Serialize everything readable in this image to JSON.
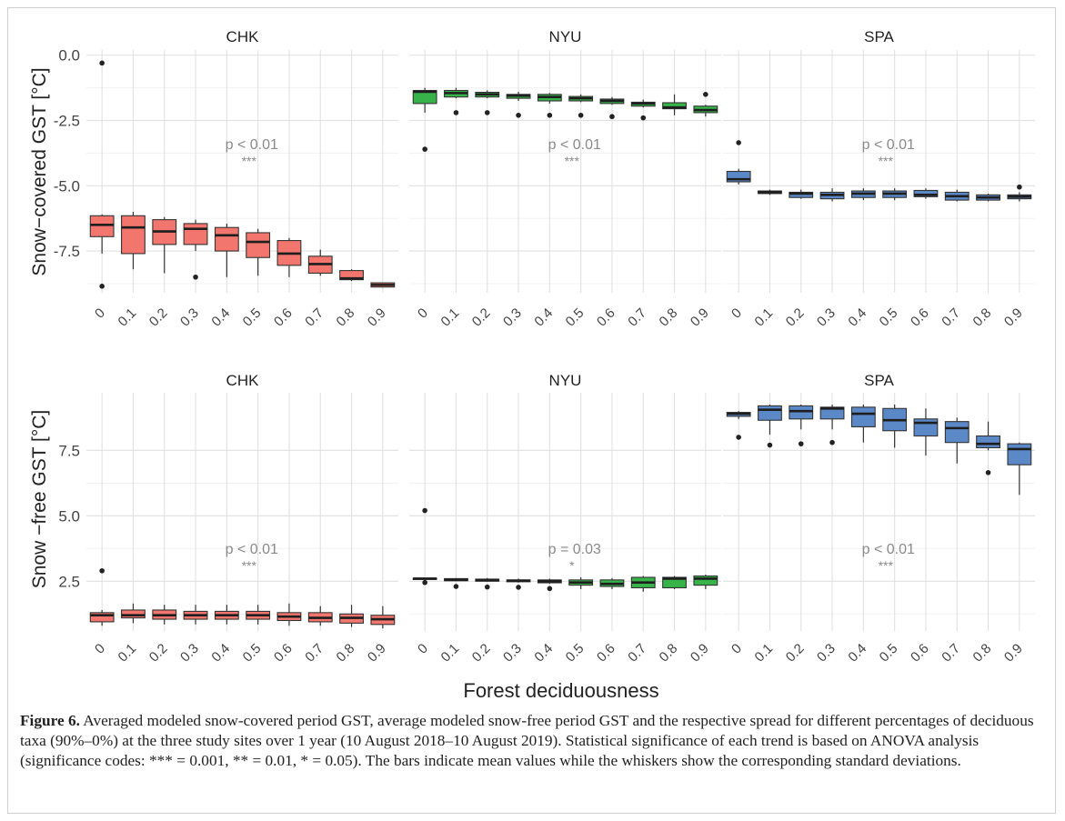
{
  "figure": {
    "label": "Figure 6.",
    "caption": "Averaged modeled snow-covered period GST, average modeled snow-free period GST and the respective spread for different percentages of deciduous taxa (90%–0%) at the three study sites over 1 year (10 August 2018–10 August 2019). Statistical significance of each trend is based on ANOVA analysis (significance codes: *** = 0.001, ** = 0.01, * = 0.05). The bars indicate mean values while the whiskers show the corresponding standard deviations.",
    "xlabel": "Forest deciduousness"
  },
  "colors": {
    "CHK": "#f2766d",
    "NYU": "#37b34a",
    "SPA": "#5b88c7"
  },
  "chart_data": [
    {
      "type": "boxplot",
      "row_ylabel": "Snow−covered GST [°C]",
      "ylim": [
        -9.1,
        0.2
      ],
      "yticks": [
        -7.5,
        -5.0,
        -2.5,
        0.0
      ],
      "ytick_labels": [
        "-7.5",
        "-5.0",
        "-2.5",
        "0.0"
      ],
      "categories": [
        "0",
        "0.1",
        "0.2",
        "0.3",
        "0.4",
        "0.5",
        "0.6",
        "0.7",
        "0.8",
        "0.9"
      ],
      "panels": [
        {
          "site": "CHK",
          "annotation": "p < 0.01",
          "stars": "***",
          "boxes": [
            {
              "lw": -7.6,
              "q1": -6.95,
              "med": -6.5,
              "q3": -6.15,
              "uw": -6.1,
              "out": [
                -0.3,
                -8.85
              ]
            },
            {
              "lw": -8.2,
              "q1": -7.6,
              "med": -6.6,
              "q3": -6.15,
              "uw": -6.0,
              "out": []
            },
            {
              "lw": -8.35,
              "q1": -7.25,
              "med": -6.75,
              "q3": -6.3,
              "uw": -6.2,
              "out": []
            },
            {
              "lw": -7.5,
              "q1": -7.25,
              "med": -6.65,
              "q3": -6.45,
              "uw": -6.3,
              "out": [
                -8.5
              ]
            },
            {
              "lw": -8.5,
              "q1": -7.5,
              "med": -6.9,
              "q3": -6.6,
              "uw": -6.45,
              "out": []
            },
            {
              "lw": -8.45,
              "q1": -7.75,
              "med": -7.15,
              "q3": -6.8,
              "uw": -6.65,
              "out": []
            },
            {
              "lw": -8.5,
              "q1": -8.05,
              "med": -7.6,
              "q3": -7.1,
              "uw": -7.0,
              "out": []
            },
            {
              "lw": -8.45,
              "q1": -8.35,
              "med": -8.0,
              "q3": -7.7,
              "uw": -7.45,
              "out": []
            },
            {
              "lw": -8.65,
              "q1": -8.6,
              "med": -8.55,
              "q3": -8.25,
              "uw": -8.2,
              "out": []
            },
            {
              "lw": -8.9,
              "q1": -8.88,
              "med": -8.8,
              "q3": -8.72,
              "uw": -8.7,
              "out": []
            }
          ]
        },
        {
          "site": "NYU",
          "annotation": "p < 0.01",
          "stars": "***",
          "boxes": [
            {
              "lw": -2.2,
              "q1": -1.85,
              "med": -1.4,
              "q3": -1.35,
              "uw": -1.25,
              "out": [
                -3.6
              ]
            },
            {
              "lw": -1.65,
              "q1": -1.6,
              "med": -1.45,
              "q3": -1.35,
              "uw": -1.25,
              "out": [
                -2.2
              ]
            },
            {
              "lw": -1.65,
              "q1": -1.6,
              "med": -1.5,
              "q3": -1.42,
              "uw": -1.35,
              "out": [
                -2.2
              ]
            },
            {
              "lw": -1.75,
              "q1": -1.65,
              "med": -1.55,
              "q3": -1.5,
              "uw": -1.4,
              "out": [
                -2.3
              ]
            },
            {
              "lw": -1.85,
              "q1": -1.75,
              "med": -1.6,
              "q3": -1.5,
              "uw": -1.45,
              "out": [
                -2.3
              ]
            },
            {
              "lw": -1.8,
              "q1": -1.75,
              "med": -1.65,
              "q3": -1.58,
              "uw": -1.5,
              "out": [
                -2.3
              ]
            },
            {
              "lw": -1.9,
              "q1": -1.85,
              "med": -1.75,
              "q3": -1.68,
              "uw": -1.6,
              "out": [
                -2.35
              ]
            },
            {
              "lw": -2.0,
              "q1": -1.95,
              "med": -1.85,
              "q3": -1.8,
              "uw": -1.7,
              "out": [
                -2.4
              ]
            },
            {
              "lw": -2.3,
              "q1": -2.05,
              "med": -2.0,
              "q3": -1.82,
              "uw": -1.5,
              "out": []
            },
            {
              "lw": -2.35,
              "q1": -2.2,
              "med": -2.1,
              "q3": -1.95,
              "uw": -1.9,
              "out": [
                -1.5
              ]
            }
          ]
        },
        {
          "site": "SPA",
          "annotation": "p < 0.01",
          "stars": "***",
          "boxes": [
            {
              "lw": -4.95,
              "q1": -4.85,
              "med": -4.75,
              "q3": -4.45,
              "uw": -4.35,
              "out": [
                -3.35
              ]
            },
            {
              "lw": -5.35,
              "q1": -5.3,
              "med": -5.25,
              "q3": -5.2,
              "uw": -5.15,
              "out": []
            },
            {
              "lw": -5.5,
              "q1": -5.45,
              "med": -5.3,
              "q3": -5.25,
              "uw": -5.15,
              "out": []
            },
            {
              "lw": -5.6,
              "q1": -5.5,
              "med": -5.35,
              "q3": -5.25,
              "uw": -5.1,
              "out": []
            },
            {
              "lw": -5.55,
              "q1": -5.45,
              "med": -5.3,
              "q3": -5.2,
              "uw": -5.1,
              "out": []
            },
            {
              "lw": -5.55,
              "q1": -5.45,
              "med": -5.3,
              "q3": -5.2,
              "uw": -5.1,
              "out": []
            },
            {
              "lw": -5.5,
              "q1": -5.42,
              "med": -5.35,
              "q3": -5.18,
              "uw": -5.1,
              "out": []
            },
            {
              "lw": -5.6,
              "q1": -5.55,
              "med": -5.4,
              "q3": -5.25,
              "uw": -5.15,
              "out": []
            },
            {
              "lw": -5.6,
              "q1": -5.55,
              "med": -5.45,
              "q3": -5.35,
              "uw": -5.3,
              "out": []
            },
            {
              "lw": -5.6,
              "q1": -5.5,
              "med": -5.42,
              "q3": -5.35,
              "uw": -5.25,
              "out": [
                -5.05
              ]
            }
          ]
        }
      ]
    },
    {
      "type": "boxplot",
      "row_ylabel": "Snow −free GST [°C]",
      "ylim": [
        0.6,
        9.7
      ],
      "yticks": [
        2.5,
        5.0,
        7.5
      ],
      "ytick_labels": [
        "2.5",
        "5.0",
        "7.5"
      ],
      "categories": [
        "0",
        "0.1",
        "0.2",
        "0.3",
        "0.4",
        "0.5",
        "0.6",
        "0.7",
        "0.8",
        "0.9"
      ],
      "panels": [
        {
          "site": "CHK",
          "annotation": "p < 0.01",
          "stars": "***",
          "boxes": [
            {
              "lw": 0.8,
              "q1": 0.95,
              "med": 1.2,
              "q3": 1.3,
              "uw": 1.4,
              "out": [
                2.9
              ]
            },
            {
              "lw": 0.9,
              "q1": 1.1,
              "med": 1.2,
              "q3": 1.4,
              "uw": 1.65,
              "out": []
            },
            {
              "lw": 0.85,
              "q1": 1.05,
              "med": 1.2,
              "q3": 1.4,
              "uw": 1.6,
              "out": []
            },
            {
              "lw": 0.85,
              "q1": 1.05,
              "med": 1.2,
              "q3": 1.35,
              "uw": 1.6,
              "out": []
            },
            {
              "lw": 0.85,
              "q1": 1.05,
              "med": 1.2,
              "q3": 1.35,
              "uw": 1.6,
              "out": []
            },
            {
              "lw": 0.85,
              "q1": 1.05,
              "med": 1.2,
              "q3": 1.35,
              "uw": 1.6,
              "out": []
            },
            {
              "lw": 0.8,
              "q1": 1.0,
              "med": 1.15,
              "q3": 1.3,
              "uw": 1.65,
              "out": []
            },
            {
              "lw": 0.8,
              "q1": 0.95,
              "med": 1.1,
              "q3": 1.3,
              "uw": 1.55,
              "out": []
            },
            {
              "lw": 0.75,
              "q1": 0.9,
              "med": 1.1,
              "q3": 1.25,
              "uw": 1.6,
              "out": []
            },
            {
              "lw": 0.7,
              "q1": 0.85,
              "med": 1.05,
              "q3": 1.2,
              "uw": 1.55,
              "out": []
            }
          ]
        },
        {
          "site": "NYU",
          "annotation": "p = 0.03",
          "stars": "*",
          "boxes": [
            {
              "lw": 2.55,
              "q1": 2.58,
              "med": 2.6,
              "q3": 2.62,
              "uw": 2.64,
              "out": [
                5.2,
                2.45
              ]
            },
            {
              "lw": 2.5,
              "q1": 2.52,
              "med": 2.55,
              "q3": 2.6,
              "uw": 2.62,
              "out": [
                2.3
              ]
            },
            {
              "lw": 2.48,
              "q1": 2.5,
              "med": 2.55,
              "q3": 2.58,
              "uw": 2.62,
              "out": [
                2.28
              ]
            },
            {
              "lw": 2.45,
              "q1": 2.48,
              "med": 2.52,
              "q3": 2.55,
              "uw": 2.6,
              "out": [
                2.27
              ]
            },
            {
              "lw": 2.4,
              "q1": 2.44,
              "med": 2.5,
              "q3": 2.55,
              "uw": 2.6,
              "out": [
                2.22
              ]
            },
            {
              "lw": 2.2,
              "q1": 2.35,
              "med": 2.45,
              "q3": 2.55,
              "uw": 2.65,
              "out": []
            },
            {
              "lw": 2.2,
              "q1": 2.3,
              "med": 2.4,
              "q3": 2.55,
              "uw": 2.62,
              "out": []
            },
            {
              "lw": 2.1,
              "q1": 2.25,
              "med": 2.45,
              "q3": 2.65,
              "uw": 2.7,
              "out": []
            },
            {
              "lw": 2.2,
              "q1": 2.25,
              "med": 2.6,
              "q3": 2.65,
              "uw": 2.7,
              "out": []
            },
            {
              "lw": 2.2,
              "q1": 2.35,
              "med": 2.6,
              "q3": 2.7,
              "uw": 2.75,
              "out": []
            }
          ]
        },
        {
          "site": "SPA",
          "annotation": "p < 0.01",
          "stars": "***",
          "boxes": [
            {
              "lw": 8.7,
              "q1": 8.8,
              "med": 8.9,
              "q3": 8.95,
              "uw": 9.0,
              "out": [
                8.0
              ]
            },
            {
              "lw": 8.1,
              "q1": 8.65,
              "med": 9.05,
              "q3": 9.2,
              "uw": 9.25,
              "out": [
                7.7
              ]
            },
            {
              "lw": 8.3,
              "q1": 8.7,
              "med": 9.0,
              "q3": 9.2,
              "uw": 9.25,
              "out": [
                7.75
              ]
            },
            {
              "lw": 8.3,
              "q1": 8.7,
              "med": 9.1,
              "q3": 9.15,
              "uw": 9.25,
              "out": [
                7.8
              ]
            },
            {
              "lw": 7.8,
              "q1": 8.4,
              "med": 8.9,
              "q3": 9.15,
              "uw": 9.25,
              "out": []
            },
            {
              "lw": 7.6,
              "q1": 8.25,
              "med": 8.65,
              "q3": 9.1,
              "uw": 9.25,
              "out": []
            },
            {
              "lw": 7.3,
              "q1": 8.05,
              "med": 8.55,
              "q3": 8.7,
              "uw": 9.1,
              "out": []
            },
            {
              "lw": 7.0,
              "q1": 7.8,
              "med": 8.35,
              "q3": 8.6,
              "uw": 8.75,
              "out": []
            },
            {
              "lw": 7.5,
              "q1": 7.6,
              "med": 7.75,
              "q3": 8.05,
              "uw": 8.6,
              "out": [
                6.65
              ]
            },
            {
              "lw": 5.8,
              "q1": 6.95,
              "med": 7.55,
              "q3": 7.75,
              "uw": 7.8,
              "out": []
            }
          ]
        }
      ]
    }
  ]
}
